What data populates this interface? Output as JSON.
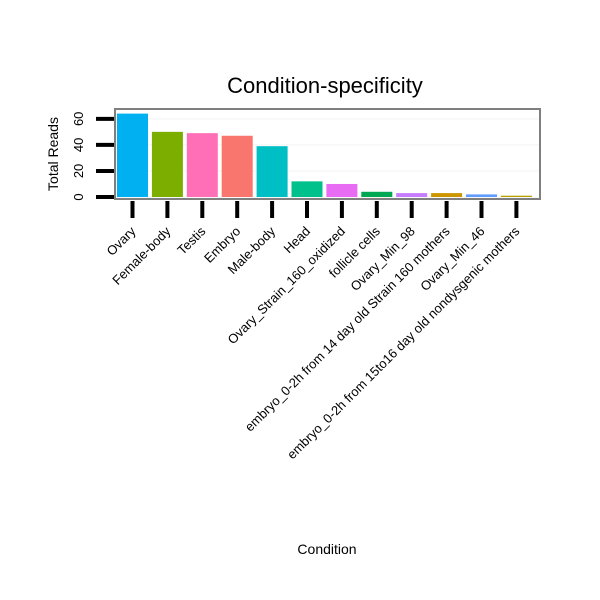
{
  "chart_data": {
    "type": "bar",
    "title": "Condition-specificity",
    "xlabel": "Condition",
    "ylabel": "Total Reads",
    "ylim": [
      0,
      66
    ],
    "yticks": [
      0,
      20,
      40,
      60
    ],
    "grid": true,
    "legend": "none",
    "categories": [
      "Ovary",
      "Female-body",
      "Testis",
      "Embryo",
      "Male-body",
      "Head",
      "Ovary_Strain_160_oxidized",
      "follicle cells",
      "Ovary_Min_98",
      "embryo_0-2h from 14 day old Strain 160 mothers",
      "Ovary_Min_46",
      "embryo_0-2h from 15to16 day old nondysgenic mothers"
    ],
    "values": [
      64,
      50,
      49,
      47,
      39,
      12,
      10,
      4,
      3,
      3,
      2,
      1
    ],
    "colors": [
      "#00B0F0",
      "#7CAE00",
      "#FF6FB7",
      "#F8766D",
      "#00BFC4",
      "#00C08B",
      "#E76BF3",
      "#00A854",
      "#C77CFF",
      "#CD9600",
      "#619CFF",
      "#B79F00"
    ],
    "panel_border_color": "#7f7f7f",
    "grid_color": "#f3f3f3"
  }
}
